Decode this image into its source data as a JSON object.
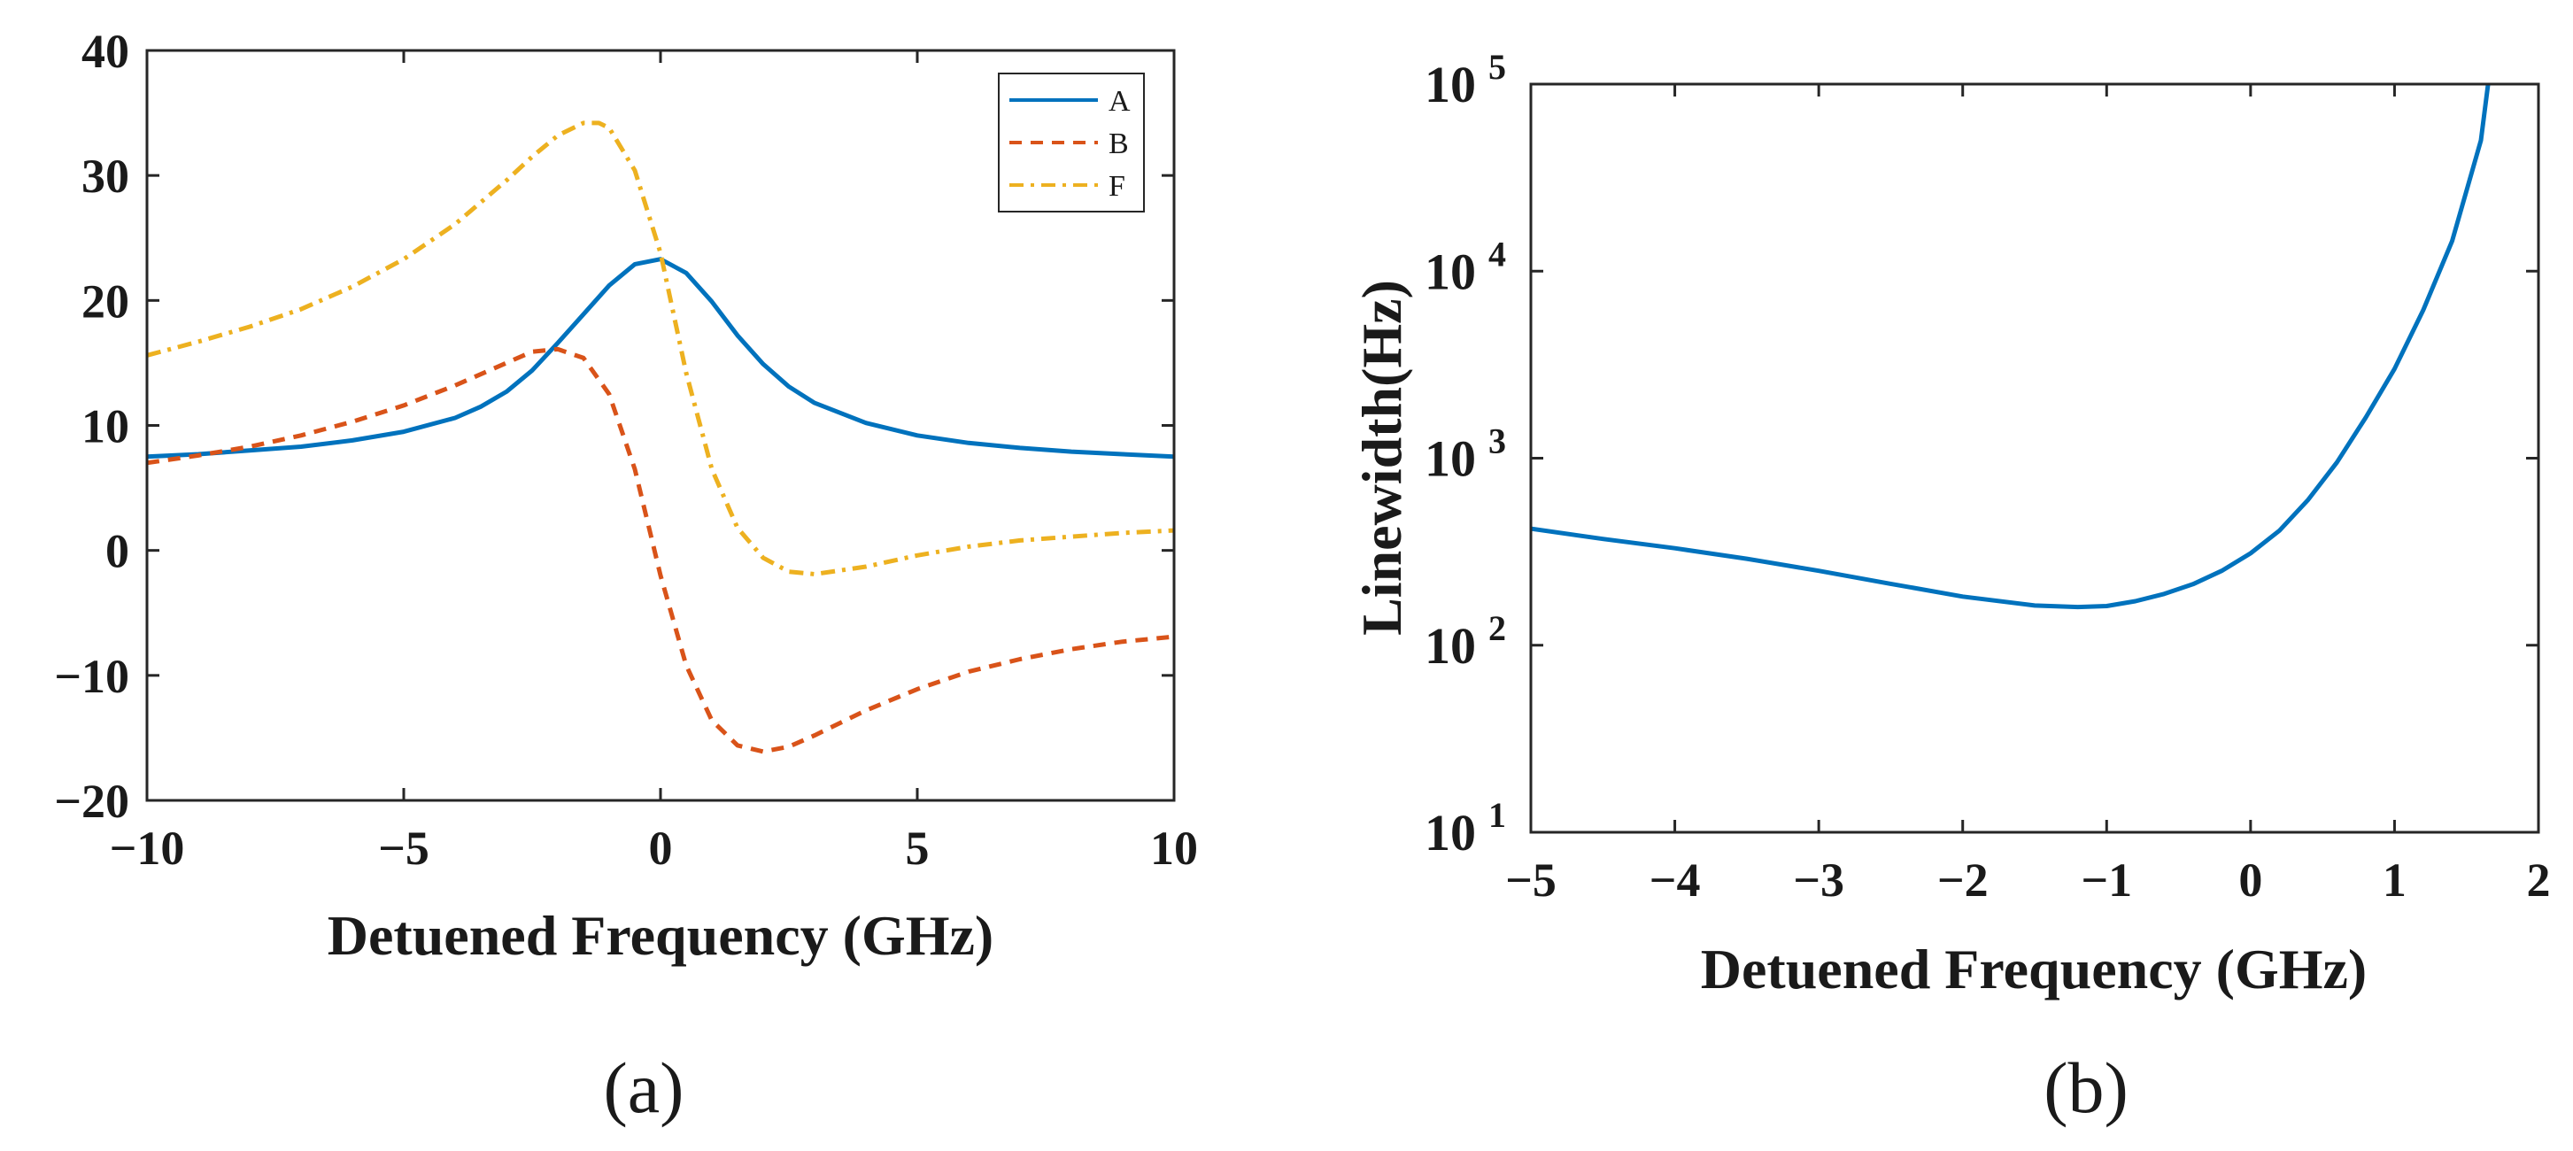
{
  "chart_data": [
    {
      "type": "line",
      "caption": "(a)",
      "xlabel": "Detuened Frequency (GHz)",
      "ylabel": "",
      "xlim": [
        -10,
        10
      ],
      "ylim": [
        -20,
        40
      ],
      "xticks": [
        -10,
        -5,
        0,
        5,
        10
      ],
      "xtick_labels": [
        "−10",
        "−5",
        "0",
        "5",
        "10"
      ],
      "yticks": [
        -20,
        -10,
        0,
        10,
        20,
        30,
        40
      ],
      "ytick_labels": [
        "−20",
        "−10",
        "0",
        "10",
        "20",
        "30",
        "40"
      ],
      "legend_position": "top-right",
      "grid": false,
      "series": [
        {
          "name": "A",
          "color": "#0072BD",
          "style": "solid",
          "x": [
            -10,
            -9,
            -8,
            -7,
            -6,
            -5,
            -4,
            -3.5,
            -3,
            -2.5,
            -2,
            -1.5,
            -1,
            -0.5,
            0,
            0.5,
            1,
            1.5,
            2,
            2.5,
            3,
            4,
            5,
            6,
            7,
            8,
            9,
            10
          ],
          "y": [
            7.5,
            7.7,
            8.0,
            8.3,
            8.8,
            9.5,
            10.6,
            11.5,
            12.7,
            14.4,
            16.6,
            18.9,
            21.2,
            22.9,
            23.3,
            22.2,
            19.9,
            17.2,
            14.9,
            13.1,
            11.8,
            10.2,
            9.2,
            8.6,
            8.2,
            7.9,
            7.7,
            7.5
          ]
        },
        {
          "name": "B",
          "color": "#D95319",
          "style": "dashed",
          "x": [
            -10,
            -9,
            -8,
            -7,
            -6,
            -5,
            -4,
            -3,
            -2.5,
            -2,
            -1.5,
            -1,
            -0.5,
            0,
            0.5,
            1,
            1.5,
            2,
            2.5,
            3,
            4,
            5,
            6,
            7,
            8,
            9,
            10
          ],
          "y": [
            7.0,
            7.6,
            8.3,
            9.2,
            10.3,
            11.6,
            13.2,
            15.0,
            15.9,
            16.1,
            15.4,
            12.5,
            6.5,
            -2.0,
            -9.2,
            -13.6,
            -15.6,
            -16.1,
            -15.7,
            -14.8,
            -12.8,
            -11.1,
            -9.7,
            -8.7,
            -7.9,
            -7.3,
            -6.9
          ]
        },
        {
          "name": "F",
          "color": "#EDB120",
          "style": "dashdot",
          "x": [
            -10,
            -9,
            -8,
            -7,
            -6,
            -5,
            -4,
            -3,
            -2.5,
            -2,
            -1.5,
            -1.2,
            -1,
            -0.5,
            0,
            0.5,
            1,
            1.5,
            2,
            2.5,
            3,
            4,
            5,
            6,
            7,
            8,
            9,
            10
          ],
          "y": [
            15.6,
            16.7,
            17.9,
            19.3,
            21.1,
            23.3,
            26.1,
            29.6,
            31.5,
            33.2,
            34.2,
            34.2,
            33.8,
            30.4,
            23.8,
            14.2,
            6.5,
            1.8,
            -0.6,
            -1.7,
            -1.9,
            -1.3,
            -0.4,
            0.3,
            0.8,
            1.1,
            1.4,
            1.6
          ]
        }
      ]
    },
    {
      "type": "line",
      "caption": "(b)",
      "xlabel": "Detuened Frequency (GHz)",
      "ylabel": "Linewidth(Hz)",
      "yscale": "log",
      "xlim": [
        -5,
        2
      ],
      "ylim": [
        10,
        100000
      ],
      "xticks": [
        -5,
        -4,
        -3,
        -2,
        -1,
        0,
        1,
        2
      ],
      "xtick_labels": [
        "−5",
        "−4",
        "−3",
        "−2",
        "−1",
        "0",
        "1",
        "2"
      ],
      "yticks": [
        10,
        100,
        1000,
        10000,
        100000
      ],
      "ytick_base": [
        "10",
        "10",
        "10",
        "10",
        "10"
      ],
      "ytick_exp": [
        "1",
        "2",
        "3",
        "4",
        "5"
      ],
      "grid": false,
      "series": [
        {
          "color": "#0072BD",
          "style": "solid",
          "x": [
            -5,
            -4.5,
            -4,
            -3.5,
            -3,
            -2.5,
            -2,
            -1.5,
            -1.2,
            -1,
            -0.8,
            -0.6,
            -0.4,
            -0.2,
            0,
            0.2,
            0.4,
            0.6,
            0.8,
            1.0,
            1.2,
            1.4,
            1.6,
            1.65
          ],
          "y": [
            420,
            370,
            330,
            290,
            250,
            213,
            182,
            163,
            160,
            162,
            172,
            188,
            212,
            250,
            310,
            410,
            600,
            950,
            1650,
            3000,
            6200,
            14500,
            50000,
            100000
          ]
        }
      ]
    }
  ]
}
